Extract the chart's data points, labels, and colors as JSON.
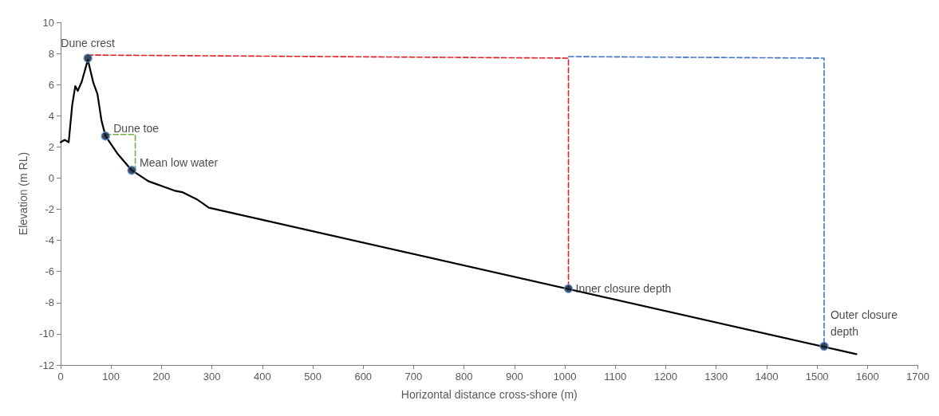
{
  "chart_data": {
    "type": "line",
    "xlabel": "Horizontal distance cross-shore (m)",
    "ylabel": "Elevation (m RL)",
    "xlim": [
      0,
      1700
    ],
    "xticks": [
      0,
      100,
      200,
      300,
      400,
      500,
      600,
      700,
      800,
      900,
      1000,
      1100,
      1200,
      1300,
      1400,
      1500,
      1600,
      1700
    ],
    "ylim": [
      -12,
      10
    ],
    "yticks": [
      -12,
      -10,
      -8,
      -6,
      -4,
      -2,
      0,
      2,
      4,
      6,
      8,
      10
    ],
    "grid": false,
    "series": [
      {
        "color": "#000000",
        "x": [
          0,
          8,
          16,
          23,
          29,
          34,
          42,
          54,
          65,
          73,
          81,
          89,
          112,
          141,
          174,
          225,
          241,
          272,
          294,
          1578
        ],
        "values": [
          2.3,
          2.45,
          2.3,
          4.7,
          5.9,
          5.6,
          6.2,
          7.6,
          6.1,
          5.4,
          3.7,
          2.7,
          1.6,
          0.5,
          -0.2,
          -0.8,
          -0.9,
          -1.4,
          -1.9,
          -11.3
        ]
      },
      {
        "type": "line",
        "color": "#e0202a",
        "line_style": "dashed",
        "x": [
          54,
          1007,
          1007
        ],
        "values": [
          7.9,
          7.7,
          -7.1
        ]
      },
      {
        "type": "line",
        "color": "#4472c4",
        "line_style": "dashed",
        "x": [
          1007,
          1514,
          1514
        ],
        "values": [
          7.8,
          7.7,
          -10.8
        ]
      },
      {
        "type": "line",
        "color": "#70ad47",
        "line_style": "dashed",
        "x": [
          89,
          148,
          148
        ],
        "values": [
          2.8,
          2.8,
          0.5
        ]
      },
      {
        "type": "scatter",
        "color": "#0d1b2a",
        "marker": "circle",
        "x": [
          54,
          89,
          141,
          1007,
          1514
        ],
        "values": [
          7.7,
          2.7,
          0.5,
          -7.1,
          -10.8
        ]
      }
    ],
    "annotations": [
      {
        "text": "Dune crest",
        "x": 54,
        "y": 7.7
      },
      {
        "text": "Dune toe",
        "x": 89,
        "y": 2.7
      },
      {
        "text": "Mean low water",
        "x": 141,
        "y": 0.5
      },
      {
        "text": "Inner closure depth",
        "x": 1007,
        "y": -7.1
      },
      {
        "text": "Outer closure depth",
        "x": 1514,
        "y": -10.8
      }
    ]
  }
}
